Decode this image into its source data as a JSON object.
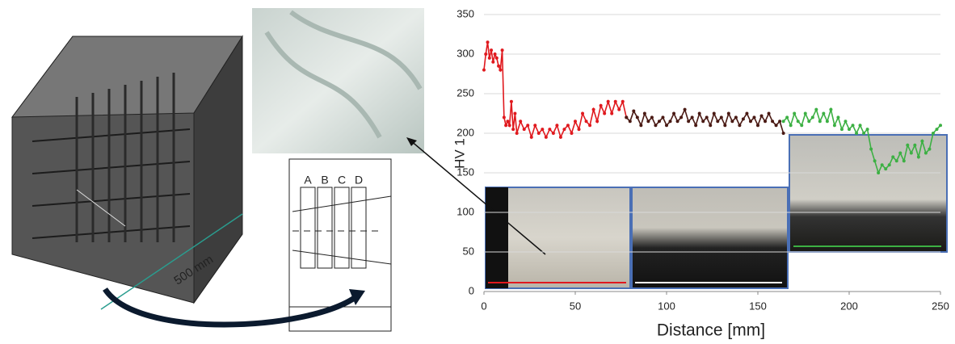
{
  "chart_data": {
    "type": "line",
    "ylabel": "HV 1",
    "xlabel": "Distance [mm]",
    "xlim": [
      0,
      250
    ],
    "xticks": [
      0,
      50,
      100,
      150,
      200,
      250
    ],
    "ylim": [
      0,
      350
    ],
    "yticks": [
      0,
      50,
      100,
      150,
      200,
      250,
      300,
      350
    ],
    "grid": true,
    "series": [
      {
        "color": "#e0191e",
        "x": [
          0,
          1,
          2,
          3,
          4,
          5,
          6,
          7,
          8,
          9,
          10,
          11,
          12,
          13,
          14,
          15,
          16,
          17,
          18,
          20,
          22,
          24,
          26,
          28,
          30,
          32,
          34,
          36,
          38,
          40,
          42,
          44,
          46,
          48,
          50,
          52,
          54,
          56,
          58,
          60,
          62,
          64,
          66,
          68,
          70,
          72,
          74,
          76,
          78
        ],
        "values": [
          280,
          300,
          315,
          295,
          305,
          290,
          300,
          295,
          285,
          280,
          305,
          220,
          210,
          215,
          210,
          240,
          205,
          225,
          200,
          215,
          205,
          210,
          195,
          210,
          200,
          205,
          195,
          205,
          200,
          210,
          195,
          205,
          210,
          200,
          215,
          205,
          225,
          215,
          210,
          230,
          215,
          235,
          225,
          240,
          225,
          240,
          230,
          240,
          220
        ]
      },
      {
        "color": "#4a1a14",
        "x": [
          78,
          80,
          82,
          84,
          86,
          88,
          90,
          92,
          94,
          96,
          98,
          100,
          102,
          104,
          106,
          108,
          110,
          112,
          114,
          116,
          118,
          120,
          122,
          124,
          126,
          128,
          130,
          132,
          134,
          136,
          138,
          140,
          142,
          144,
          146,
          148,
          150,
          152,
          154,
          156,
          158,
          160,
          162,
          164
        ],
        "values": [
          220,
          215,
          228,
          220,
          210,
          225,
          215,
          220,
          210,
          215,
          220,
          210,
          215,
          225,
          215,
          220,
          230,
          215,
          220,
          210,
          225,
          215,
          220,
          210,
          225,
          215,
          220,
          210,
          225,
          215,
          220,
          210,
          218,
          225,
          215,
          220,
          210,
          222,
          215,
          225,
          215,
          210,
          215,
          200
        ]
      },
      {
        "color": "#3cb043",
        "x": [
          164,
          166,
          168,
          170,
          172,
          174,
          176,
          178,
          180,
          182,
          184,
          186,
          188,
          190,
          192,
          194,
          196,
          198,
          200,
          202,
          204,
          206,
          208,
          210,
          212,
          214,
          216,
          218,
          220,
          222,
          224,
          226,
          228,
          230,
          232,
          234,
          236,
          238,
          240,
          242,
          244,
          246,
          248,
          250
        ],
        "values": [
          215,
          220,
          210,
          225,
          215,
          210,
          225,
          215,
          220,
          230,
          215,
          225,
          215,
          230,
          210,
          220,
          205,
          215,
          205,
          210,
          200,
          210,
          200,
          205,
          180,
          165,
          150,
          160,
          155,
          160,
          170,
          165,
          175,
          165,
          185,
          175,
          185,
          170,
          190,
          175,
          180,
          200,
          205,
          210
        ]
      }
    ]
  },
  "figure": {
    "dimension": "500 mm",
    "columns": [
      "A",
      "B",
      "C",
      "D"
    ]
  }
}
